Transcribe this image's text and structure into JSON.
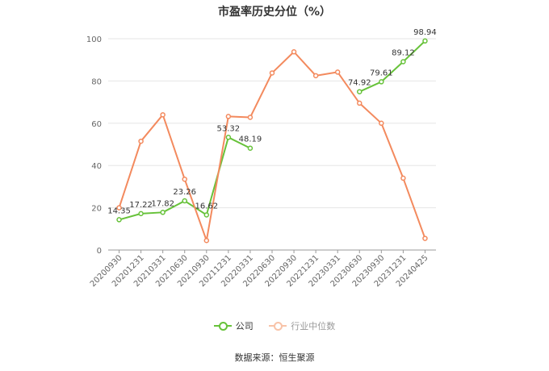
{
  "chart_data": {
    "type": "line",
    "title": "市盈率历史分位（%）",
    "categories": [
      "20200930",
      "20201231",
      "20210331",
      "20210630",
      "20210930",
      "20211231",
      "20220331",
      "20220630",
      "20220930",
      "20221231",
      "20230331",
      "20230630",
      "20230930",
      "20231231",
      "20240425"
    ],
    "ylim": [
      0,
      100
    ],
    "yticks": [
      0,
      20,
      40,
      60,
      80,
      100
    ],
    "grid": true,
    "legend_position": "bottom",
    "series": [
      {
        "name": "公司",
        "color": "#67c23a",
        "values": [
          14.35,
          17.22,
          17.82,
          23.26,
          16.62,
          53.32,
          48.19,
          null,
          null,
          null,
          null,
          74.92,
          79.61,
          89.12,
          98.94
        ],
        "labels": [
          "14.35",
          "17.22",
          "17.82",
          "23.26",
          "16.62",
          "53.32",
          "48.19",
          null,
          null,
          null,
          null,
          "74.92",
          "79.61",
          "89.12",
          "98.94"
        ]
      },
      {
        "name": "行业中位数",
        "color": "#f38a5e",
        "values": [
          20.0,
          51.5,
          64.0,
          33.5,
          4.5,
          63.2,
          62.8,
          83.8,
          93.8,
          82.5,
          84.2,
          69.5,
          60.0,
          34.0,
          5.5
        ]
      }
    ]
  },
  "legend": {
    "company": "公司",
    "industry": "行业中位数"
  },
  "source": "数据来源：恒生聚源"
}
